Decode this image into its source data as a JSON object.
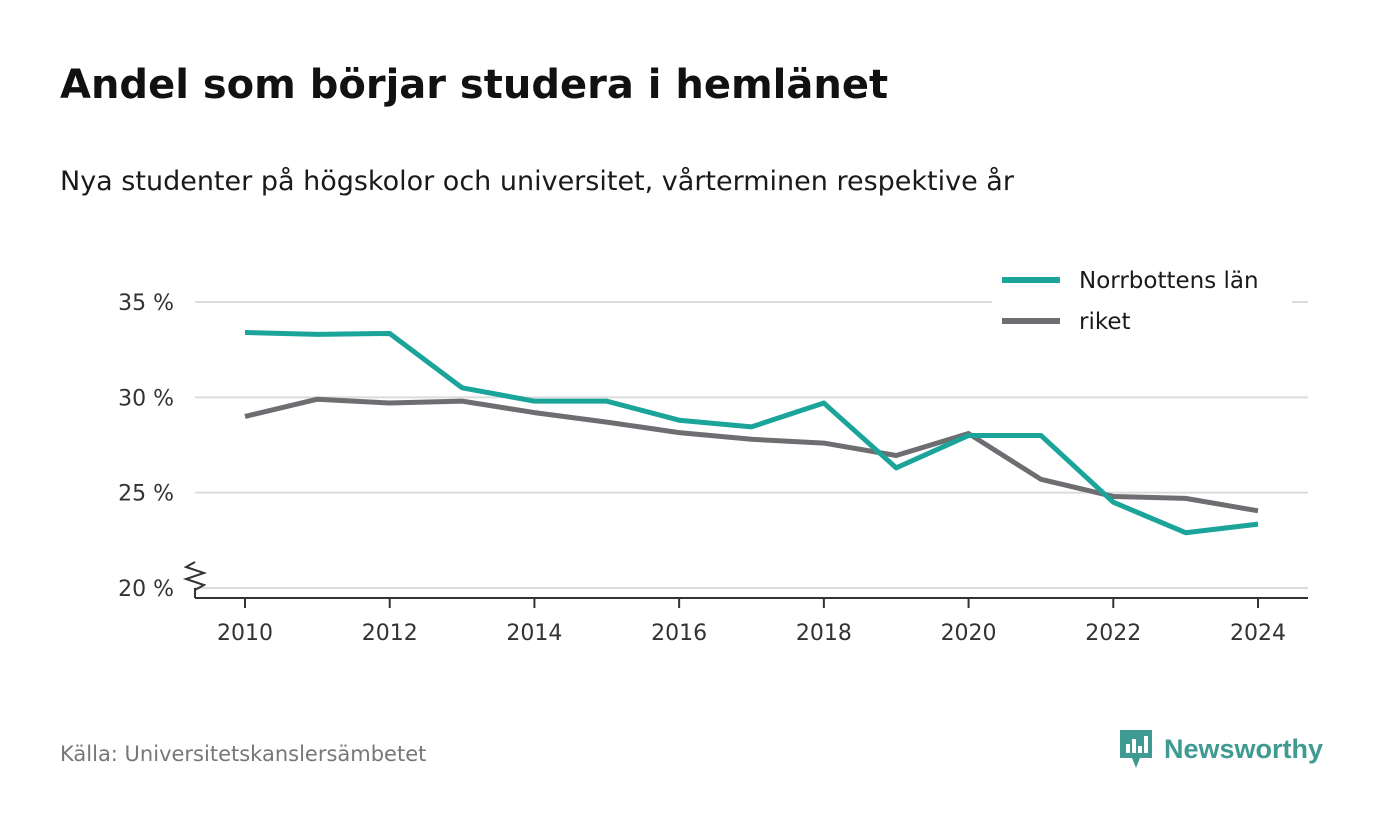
{
  "title": "Andel som börjar studera i hemlänet",
  "subtitle": "Nya studenter på högskolor och universitet, vårterminen respektive år",
  "source": "Källa: Universitetskanslersämbetet",
  "brand": {
    "name": "Newsworthy",
    "icon": "newsworthy-logo-icon",
    "color": "#3f9a91"
  },
  "chart_data": {
    "type": "line",
    "title": "Andel som börjar studera i hemlänet",
    "subtitle": "Nya studenter på högskolor och universitet, vårterminen respektive år",
    "xlabel": "",
    "ylabel": "",
    "x": [
      2010,
      2011,
      2012,
      2013,
      2014,
      2015,
      2016,
      2017,
      2018,
      2019,
      2020,
      2021,
      2022,
      2023,
      2024
    ],
    "xticks": [
      "2010",
      "2012",
      "2014",
      "2016",
      "2018",
      "2020",
      "2022",
      "2024"
    ],
    "yticks": [
      "20 %",
      "25 %",
      "30 %",
      "35 %"
    ],
    "ylim": [
      20,
      35
    ],
    "y_axis_break": true,
    "grid": true,
    "legend_position": "top-right",
    "series": [
      {
        "name": "Norrbottens län",
        "color": "#1aa49a",
        "values": [
          33.4,
          33.3,
          33.35,
          30.5,
          29.8,
          29.8,
          28.8,
          28.45,
          29.7,
          26.3,
          28.0,
          28.0,
          24.5,
          22.9,
          23.35
        ]
      },
      {
        "name": "riket",
        "color": "#6e6e72",
        "values": [
          29.0,
          29.9,
          29.7,
          29.8,
          29.2,
          28.7,
          28.15,
          27.8,
          27.6,
          26.95,
          28.1,
          25.7,
          24.8,
          24.7,
          24.05
        ]
      }
    ]
  }
}
